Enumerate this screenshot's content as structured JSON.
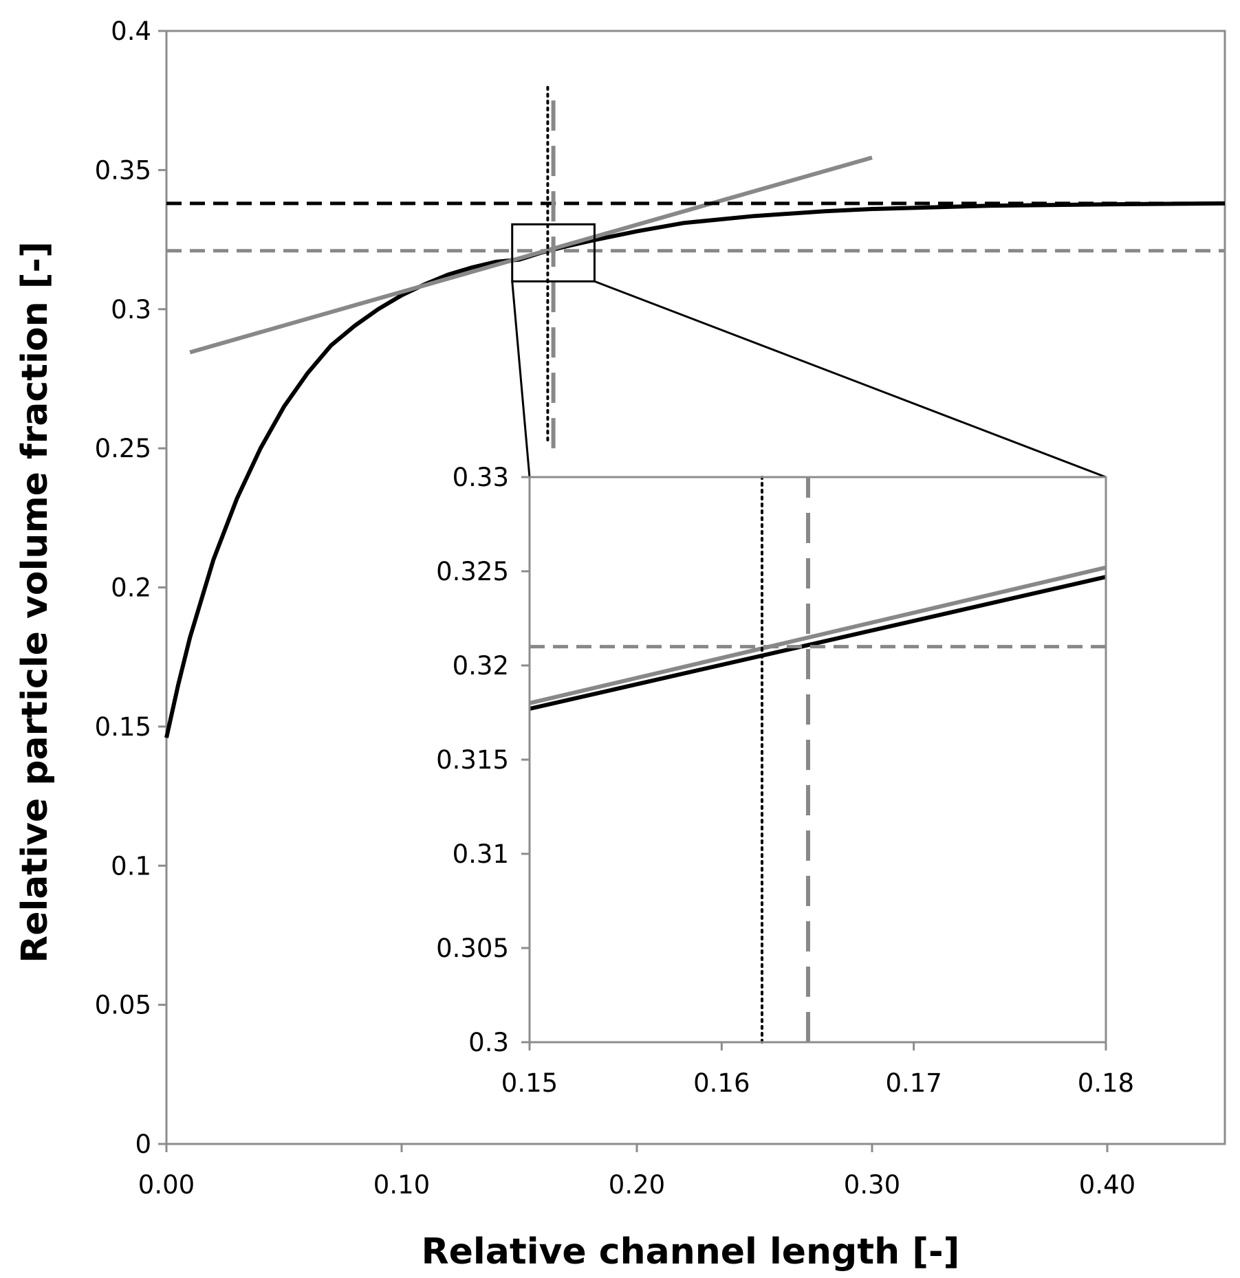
{
  "chart_data": [
    {
      "id": "main",
      "type": "line",
      "title": "",
      "xlabel": "Relative channel length [-]",
      "ylabel": "Relative particle volume fraction [-]",
      "xlim": [
        0,
        0.45
      ],
      "ylim": [
        0,
        0.4
      ],
      "x_ticks": [
        0,
        0.1,
        0.2,
        0.3,
        0.4
      ],
      "x_tick_labels": [
        "0.00",
        "0.10",
        "0.20",
        "0.30",
        "0.40"
      ],
      "y_ticks": [
        0,
        0.05,
        0.1,
        0.15,
        0.2,
        0.25,
        0.3,
        0.35,
        0.4
      ],
      "y_tick_labels": [
        "0",
        "0.05",
        "0.1",
        "0.15",
        "0.2",
        "0.25",
        "0.3",
        "0.35",
        "0.4"
      ],
      "grid": false,
      "series": [
        {
          "name": "particle volume fraction curve",
          "style": "solid",
          "color": "#000000",
          "x": [
            0,
            0.005,
            0.01,
            0.02,
            0.03,
            0.04,
            0.05,
            0.06,
            0.07,
            0.08,
            0.09,
            0.1,
            0.11,
            0.12,
            0.13,
            0.14,
            0.15,
            0.16,
            0.17,
            0.18,
            0.2,
            0.22,
            0.25,
            0.28,
            0.3,
            0.35,
            0.4,
            0.45
          ],
          "y": [
            0.146,
            0.165,
            0.182,
            0.21,
            0.232,
            0.25,
            0.265,
            0.277,
            0.287,
            0.294,
            0.3,
            0.305,
            0.309,
            0.3125,
            0.315,
            0.317,
            0.3178,
            0.3205,
            0.3226,
            0.3245,
            0.328,
            0.331,
            0.3335,
            0.3352,
            0.336,
            0.3372,
            0.3377,
            0.338
          ]
        },
        {
          "name": "tangent line",
          "style": "solid",
          "color": "#888888",
          "x": [
            0.01,
            0.3
          ],
          "y": [
            0.2845,
            0.3545
          ]
        },
        {
          "name": "upper asymptote",
          "style": "dashed",
          "color": "#000000",
          "x": [
            0,
            0.45
          ],
          "y": [
            0.338,
            0.338
          ]
        },
        {
          "name": "reference level",
          "style": "dashed",
          "color": "#888888",
          "x": [
            0,
            0.45
          ],
          "y": [
            0.321,
            0.321
          ]
        },
        {
          "name": "vertical marker dotted",
          "style": "dotted",
          "color": "#000000",
          "x": [
            0.1621,
            0.1621
          ],
          "y": [
            0.253,
            0.38
          ]
        },
        {
          "name": "vertical marker long-dash",
          "style": "longdash",
          "color": "#888888",
          "x": [
            0.1645,
            0.1645
          ],
          "y": [
            0.25,
            0.377
          ]
        }
      ],
      "zoom_box": {
        "x": [
          0.147,
          0.182
        ],
        "y": [
          0.31,
          0.3305
        ]
      }
    },
    {
      "id": "inset",
      "type": "line",
      "title": "",
      "xlabel": "",
      "ylabel": "",
      "xlim": [
        0.15,
        0.18
      ],
      "ylim": [
        0.3,
        0.33
      ],
      "x_ticks": [
        0.15,
        0.16,
        0.17,
        0.18
      ],
      "x_tick_labels": [
        "0.15",
        "0.16",
        "0.17",
        "0.18"
      ],
      "y_ticks": [
        0.3,
        0.305,
        0.31,
        0.315,
        0.32,
        0.325,
        0.33
      ],
      "y_tick_labels": [
        "0.3",
        "0.305",
        "0.31",
        "0.315",
        "0.32",
        "0.325",
        "0.33"
      ],
      "grid": false,
      "series": [
        {
          "name": "particle volume fraction curve",
          "style": "solid",
          "color": "#000000",
          "x": [
            0.15,
            0.18
          ],
          "y": [
            0.3177,
            0.3247
          ]
        },
        {
          "name": "tangent line",
          "style": "solid",
          "color": "#888888",
          "x": [
            0.15,
            0.18
          ],
          "y": [
            0.318,
            0.3252
          ]
        },
        {
          "name": "reference level",
          "style": "dashed",
          "color": "#888888",
          "x": [
            0.15,
            0.18
          ],
          "y": [
            0.321,
            0.321
          ]
        },
        {
          "name": "vertical marker dotted",
          "style": "dotted",
          "color": "#000000",
          "x": [
            0.1621,
            0.1621
          ],
          "y": [
            0.3,
            0.33
          ]
        },
        {
          "name": "vertical marker long-dash",
          "style": "longdash",
          "color": "#888888",
          "x": [
            0.1645,
            0.1645
          ],
          "y": [
            0.3,
            0.33
          ]
        }
      ]
    }
  ]
}
